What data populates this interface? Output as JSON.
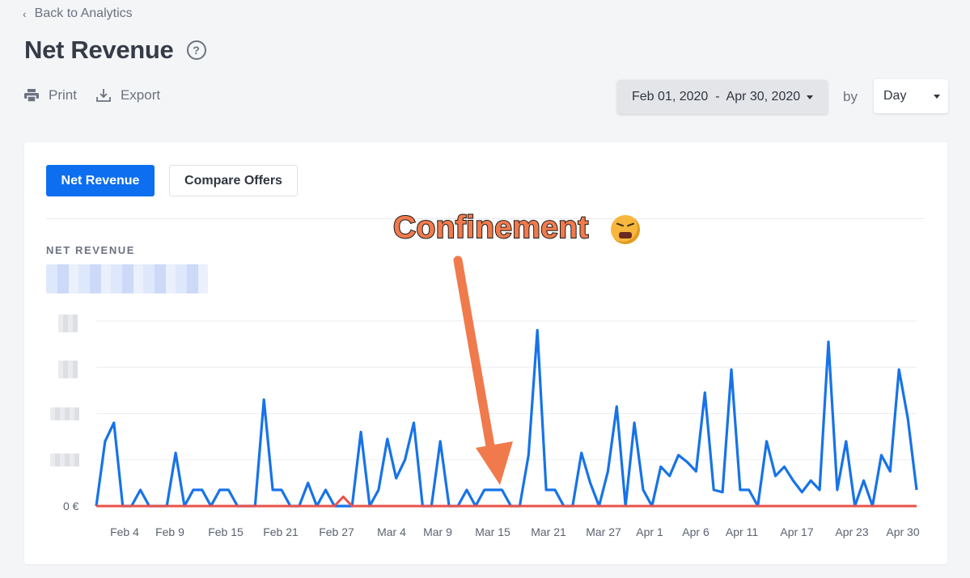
{
  "nav": {
    "back_label": "Back to Analytics"
  },
  "page": {
    "title": "Net Revenue",
    "help_icon": "help-circle-icon"
  },
  "toolbar": {
    "print_label": "Print",
    "export_label": "Export",
    "date_range": "Feb 01, 2020  -  Apr 30, 2020",
    "by_label": "by",
    "granularity": "Day"
  },
  "tabs": {
    "primary": "Net Revenue",
    "secondary": "Compare Offers"
  },
  "chart": {
    "section_label": "NET REVENUE",
    "zero_label": "0 €"
  },
  "annotation": {
    "text": "Confinement",
    "emoji": "tired-face-emoji"
  },
  "colors": {
    "primary_series": "#1773e8",
    "secondary_series": "#e8524a",
    "arrow": "#f07a4c",
    "accent": "#0d6ef0"
  },
  "chart_data": {
    "type": "line",
    "x_tick_labels": [
      "Feb 4",
      "Feb 9",
      "Feb 15",
      "Feb 21",
      "Feb 27",
      "Mar 4",
      "Mar 9",
      "Mar 15",
      "Mar 21",
      "Mar 27",
      "Apr 1",
      "Apr 6",
      "Apr 11",
      "Apr 17",
      "Apr 23",
      "Apr 30"
    ],
    "ylim": [
      0,
      4
    ],
    "series": [
      {
        "values": [
          0,
          1.4,
          1.8,
          0,
          0,
          0.35,
          0,
          0,
          0,
          1.15,
          0,
          0.35,
          0.35,
          0,
          0.35,
          0.35,
          0,
          0,
          0,
          2.3,
          0.35,
          0.35,
          0,
          0,
          0.5,
          0,
          0.35,
          0,
          0,
          0,
          1.6,
          0,
          0.35,
          1.45,
          0.6,
          1.0,
          1.8,
          0,
          0,
          1.4,
          0,
          0,
          0.35,
          0,
          0.35,
          0.35,
          0.35,
          0,
          0,
          1.1,
          3.8,
          0.35,
          0.35,
          0,
          0,
          1.15,
          0.5,
          0,
          0.75,
          2.15,
          0,
          1.8,
          0.35,
          0,
          0.85,
          0.65,
          1.1,
          0.95,
          0.75,
          2.45,
          0.35,
          0.3,
          2.95,
          0.35,
          0.35,
          0,
          1.4,
          0.65,
          0.85,
          0.55,
          0.3,
          0.55,
          0.35,
          3.55,
          0.35,
          1.4,
          0,
          0.55,
          0,
          1.1,
          0.75,
          2.95,
          1.9,
          0.35
        ],
        "color": "#1773e8"
      },
      {
        "values": [
          0,
          0,
          0,
          0,
          0,
          0,
          0,
          0,
          0,
          0,
          0,
          0,
          0,
          0,
          0,
          0,
          0,
          0,
          0,
          0,
          0,
          0,
          0,
          0,
          0,
          0,
          0,
          0,
          0.2,
          0,
          0,
          0,
          0,
          0,
          0,
          0,
          0,
          0,
          0,
          0,
          0,
          0,
          0,
          0,
          0,
          0,
          0,
          0,
          0,
          0,
          0,
          0,
          0,
          0,
          0,
          0,
          0,
          0,
          0,
          0,
          0,
          0,
          0,
          0,
          0,
          0,
          0,
          0,
          0,
          0,
          0,
          0,
          0,
          0,
          0,
          0,
          0,
          0,
          0,
          0,
          0,
          0,
          0,
          0,
          0,
          0,
          0,
          0,
          0,
          0,
          0,
          0,
          0,
          0
        ],
        "color": "#e8524a"
      }
    ]
  }
}
